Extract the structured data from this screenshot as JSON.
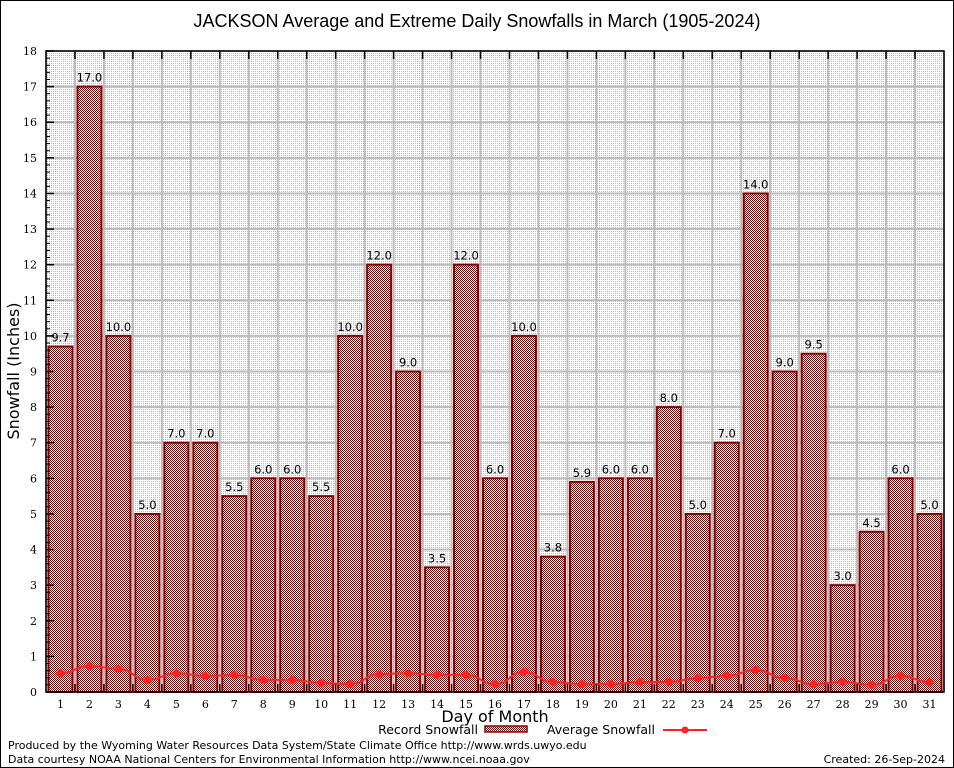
{
  "chart_data": {
    "type": "bar",
    "title": "JACKSON Average and Extreme Daily Snowfalls in March (1905-2024)",
    "xlabel": "Day of Month",
    "ylabel": "Snowfall (Inches)",
    "ylim": [
      0,
      18
    ],
    "yticks": [
      "0",
      "1",
      "2",
      "3",
      "4",
      "5",
      "6",
      "7",
      "8",
      "9",
      "10",
      "11",
      "12",
      "13",
      "14",
      "15",
      "16",
      "17",
      "18"
    ],
    "categories": [
      "1",
      "2",
      "3",
      "4",
      "5",
      "6",
      "7",
      "8",
      "9",
      "10",
      "11",
      "12",
      "13",
      "14",
      "15",
      "16",
      "17",
      "18",
      "19",
      "20",
      "21",
      "22",
      "23",
      "24",
      "25",
      "26",
      "27",
      "28",
      "29",
      "30",
      "31"
    ],
    "grid": true,
    "legend_position": "bottom-center",
    "series": [
      {
        "name": "Record Snowfall",
        "type": "bar",
        "color": "#8b0000",
        "values": [
          9.7,
          17.0,
          10.0,
          5.0,
          7.0,
          7.0,
          5.5,
          6.0,
          6.0,
          5.5,
          10.0,
          12.0,
          9.0,
          3.5,
          12.0,
          6.0,
          10.0,
          3.8,
          5.9,
          6.0,
          6.0,
          8.0,
          5.0,
          7.0,
          14.0,
          9.0,
          9.5,
          3.0,
          4.5,
          6.0,
          5.0
        ],
        "labels": [
          "9.7",
          "17.0",
          "10.0",
          "5.0",
          "7.0",
          "7.0",
          "5.5",
          "6.0",
          "6.0",
          "5.5",
          "10.0",
          "12.0",
          "9.0",
          "3.5",
          "12.0",
          "6.0",
          "10.0",
          "3.8",
          "5.9",
          "6.0",
          "6.0",
          "8.0",
          "5.0",
          "7.0",
          "14.0",
          "9.0",
          "9.5",
          "3.0",
          "4.5",
          "6.0",
          "5.0"
        ]
      },
      {
        "name": "Average Snowfall",
        "type": "line",
        "color": "#ff2222",
        "values": [
          0.53,
          0.73,
          0.65,
          0.34,
          0.53,
          0.45,
          0.48,
          0.34,
          0.34,
          0.25,
          0.22,
          0.5,
          0.53,
          0.48,
          0.48,
          0.22,
          0.56,
          0.28,
          0.22,
          0.22,
          0.28,
          0.28,
          0.39,
          0.45,
          0.62,
          0.39,
          0.22,
          0.28,
          0.2,
          0.45,
          0.28
        ]
      }
    ]
  },
  "footer": {
    "line1": "Produced by the Wyoming Water Resources Data System/State Climate Office http://www.wrds.uwyo.edu",
    "line2": "Data courtesy NOAA National Centers for Environmental Information http://www.ncei.noaa.gov",
    "created": "Created: 26-Sep-2024"
  }
}
